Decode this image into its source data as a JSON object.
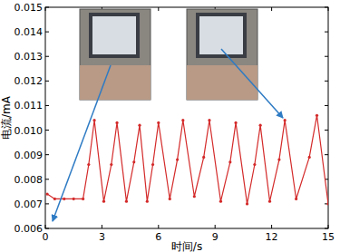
{
  "chart_data": {
    "type": "line",
    "x_label": "时间/s",
    "y_label": "电流/mA",
    "x": [
      0.1,
      0.5,
      1.0,
      1.5,
      2.0,
      2.3,
      2.6,
      3.1,
      3.5,
      3.8,
      4.3,
      4.7,
      5.0,
      5.4,
      5.7,
      6.0,
      6.6,
      7.0,
      7.3,
      7.9,
      8.4,
      8.7,
      9.3,
      9.8,
      10.1,
      10.7,
      11.1,
      11.4,
      11.9,
      12.4,
      12.7,
      13.3,
      14.0,
      14.4,
      15.0
    ],
    "series": [
      {
        "name": "电流",
        "color": "#d42a2a",
        "marker": "circle",
        "values": [
          0.0074,
          0.0072,
          0.0072,
          0.0072,
          0.0072,
          0.0086,
          0.0104,
          0.0071,
          0.0086,
          0.0103,
          0.0071,
          0.0087,
          0.0102,
          0.0071,
          0.0086,
          0.0103,
          0.0072,
          0.0088,
          0.0104,
          0.0073,
          0.0089,
          0.0104,
          0.0071,
          0.0087,
          0.0103,
          0.007,
          0.0086,
          0.0102,
          0.0071,
          0.0088,
          0.0104,
          0.0072,
          0.0089,
          0.0106,
          0.007
        ]
      }
    ],
    "xlim": [
      0,
      15
    ],
    "xticks": [
      0,
      3,
      6,
      9,
      12,
      15
    ],
    "ylim": [
      0.006,
      0.015
    ],
    "yticks": [
      0.006,
      0.007,
      0.008,
      0.009,
      {
        "value": 0.01,
        "label": "0.010"
      },
      0.011,
      0.012,
      0.013,
      0.014,
      0.015
    ],
    "grid": false
  }
}
